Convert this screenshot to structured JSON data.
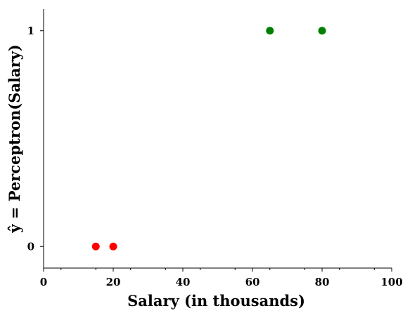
{
  "chart_data": {
    "type": "scatter",
    "xlabel": "Salary (in thousands)",
    "ylabel": "ŷ = Perceptron(Salary)",
    "xlim": [
      0,
      100
    ],
    "ylim": [
      -0.1,
      1.1
    ],
    "x_ticks": [
      "0",
      "20",
      "40",
      "60",
      "80",
      "100"
    ],
    "y_ticks": [
      "0",
      "1"
    ],
    "grid": false,
    "series": [
      {
        "color": "#ff0000",
        "points": [
          {
            "x": 15,
            "y": 0
          },
          {
            "x": 20,
            "y": 0
          }
        ]
      },
      {
        "color": "#008000",
        "points": [
          {
            "x": 65,
            "y": 1
          },
          {
            "x": 80,
            "y": 1
          }
        ]
      }
    ]
  }
}
